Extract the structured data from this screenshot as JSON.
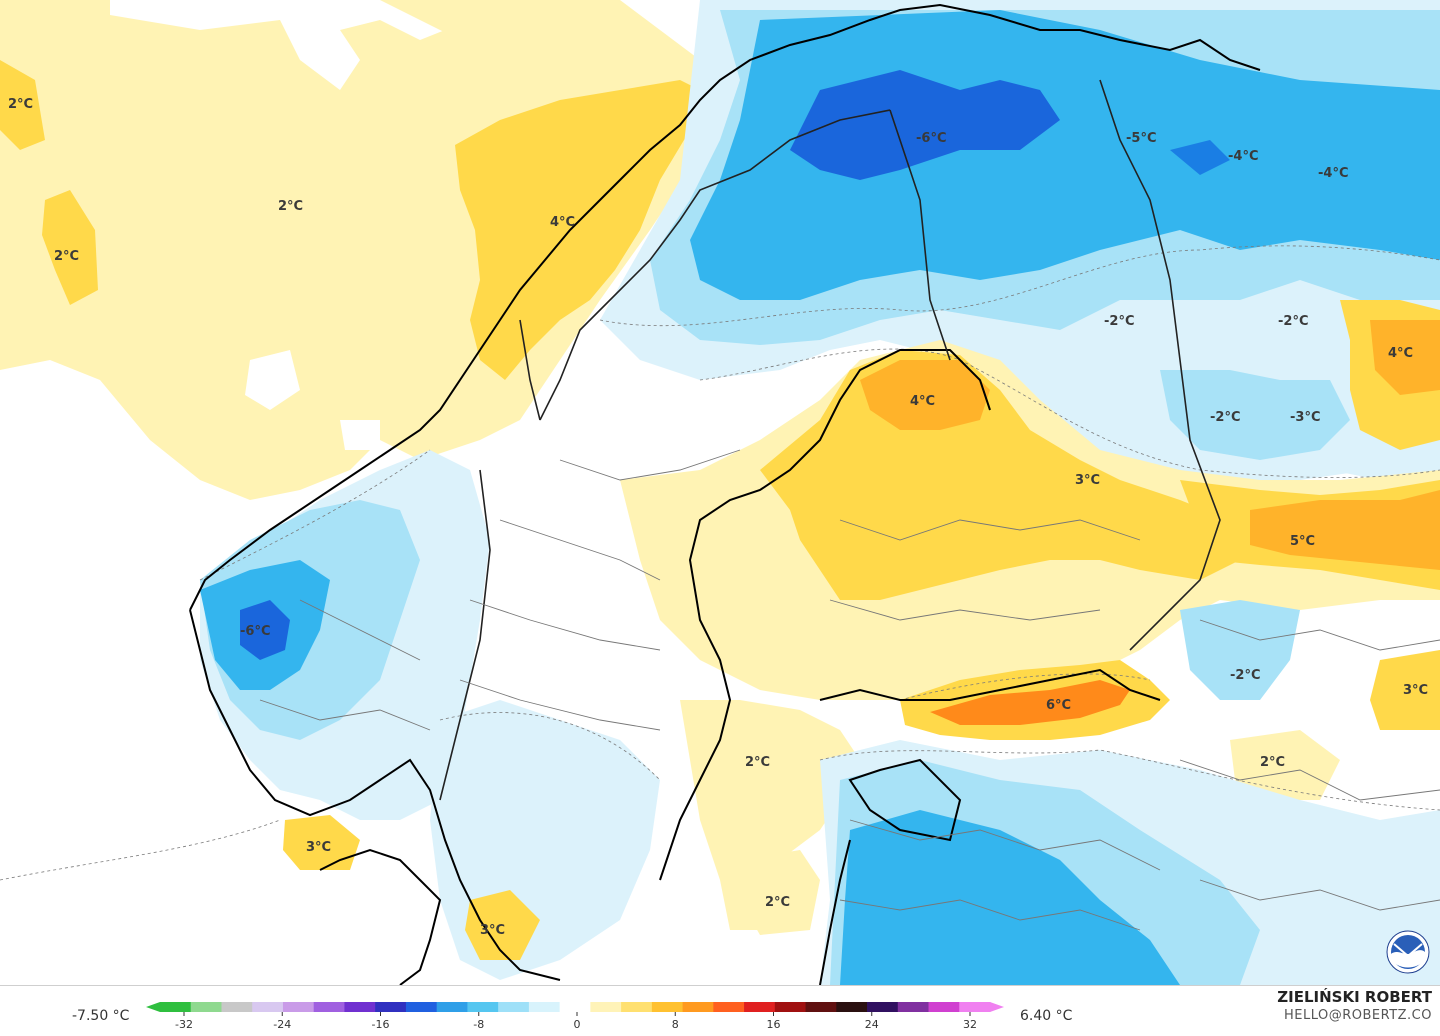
{
  "map": {
    "labels": [
      {
        "text": "2°C",
        "id": "label-2c-west-edge"
      },
      {
        "text": "2°C",
        "id": "label-2c-norwegian-sea"
      },
      {
        "text": "2°C",
        "id": "label-2c-west-sea"
      },
      {
        "text": "4°C",
        "id": "label-4c-lofoten"
      },
      {
        "text": "-6°C",
        "id": "label-minus6c-lapland"
      },
      {
        "text": "-5°C",
        "id": "label-minus5c-kola"
      },
      {
        "text": "-4°C",
        "id": "label-minus4c-barents"
      },
      {
        "text": "-4°C",
        "id": "label-minus4c-east"
      },
      {
        "text": "-2°C",
        "id": "label-minus2c-karelia"
      },
      {
        "text": "-2°C",
        "id": "label-minus2c-east"
      },
      {
        "text": "4°C",
        "id": "label-4c-east"
      },
      {
        "text": "4°C",
        "id": "label-4c-bothnia"
      },
      {
        "text": "-2°C",
        "id": "label-minus2c-karelia-south"
      },
      {
        "text": "-3°C",
        "id": "label-minus3c-karelia"
      },
      {
        "text": "3°C",
        "id": "label-3c-finland"
      },
      {
        "text": "5°C",
        "id": "label-5c-russia"
      },
      {
        "text": "-6°C",
        "id": "label-minus6c-norway"
      },
      {
        "text": "6°C",
        "id": "label-6c-gulf-finland"
      },
      {
        "text": "-2°C",
        "id": "label-minus2c-russia"
      },
      {
        "text": "3°C",
        "id": "label-3c-russia-east"
      },
      {
        "text": "2°C",
        "id": "label-2c-baltic"
      },
      {
        "text": "2°C",
        "id": "label-2c-russia-south"
      },
      {
        "text": "3°C",
        "id": "label-3c-skagerrak"
      },
      {
        "text": "2°C",
        "id": "label-2c-baltic-south"
      },
      {
        "text": "3°C",
        "id": "label-3c-denmark"
      }
    ]
  },
  "legend": {
    "min_label": "-7.50 °C",
    "max_label": "6.40 °C",
    "ticks": [
      "-32",
      "-24",
      "-16",
      "-8",
      "0",
      "8",
      "16",
      "24",
      "32"
    ],
    "colors": [
      "#2fbf3f",
      "#8fd98f",
      "#c8c8c8",
      "#d8c8f0",
      "#c99be8",
      "#a060e0",
      "#7030d0",
      "#3030c0",
      "#2060e0",
      "#2f9fe8",
      "#55c6f0",
      "#9ee0f8",
      "#d8f3fc",
      "#ffffff",
      "#fff3b8",
      "#ffe070",
      "#ffc130",
      "#ff9a20",
      "#ff6020",
      "#e02020",
      "#a01010",
      "#601010",
      "#2a1010",
      "#301060",
      "#8030a0",
      "#d040d0",
      "#f080f0"
    ]
  },
  "credit": {
    "name": "ZIELIŃSKI ROBERT",
    "email": "HELLO@ROBERTZ.CO"
  },
  "colors": {
    "cold_deep": "#1a66dc",
    "cold": "#34b5ee",
    "cool": "#a8e2f7",
    "cool_light": "#dcf2fb",
    "neutral": "#ffffff",
    "warm_light": "#fff3b4",
    "warm": "#ffd94a",
    "warm_strong": "#ffb32a",
    "hot": "#ff8a1a"
  }
}
